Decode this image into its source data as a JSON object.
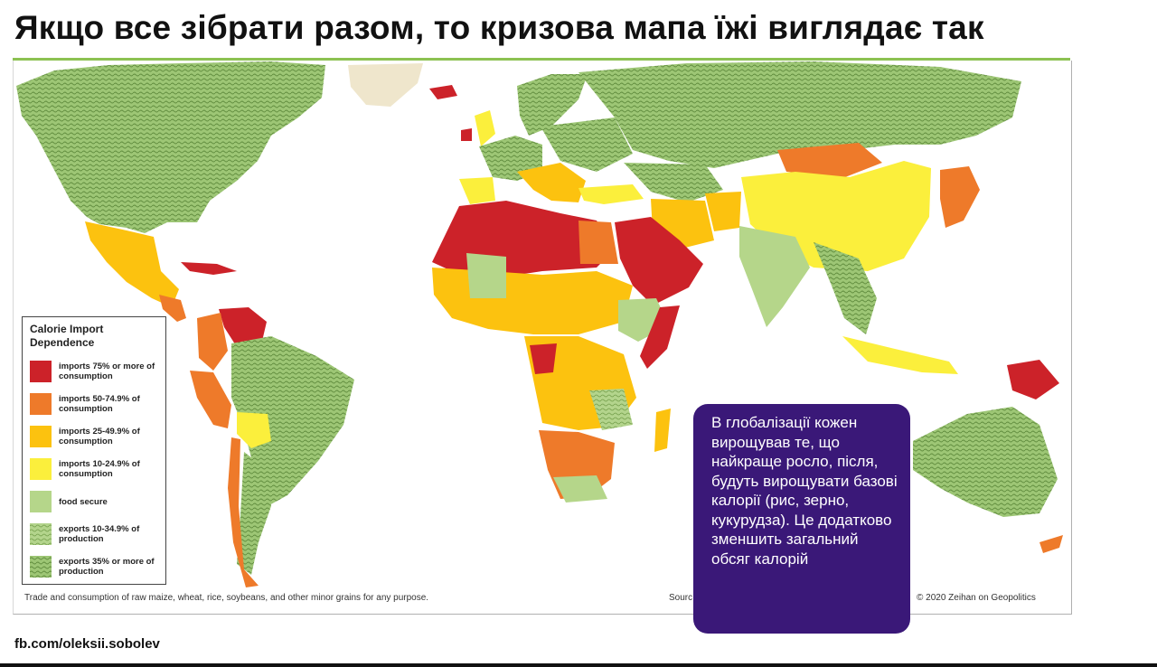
{
  "slide": {
    "title": "Якщо все зібрати разом, то кризова мапа їжі виглядає так",
    "handle": "fb.com/oleksii.sobolev"
  },
  "map": {
    "footnote": "Trade and consumption of raw maize, wheat, rice, soybeans, and other minor grains for any purpose.",
    "source_fragment": "Sourc",
    "copyright": "© 2020 Zeihan on Geopolitics",
    "legend": {
      "title": "Calorie Import Dependence",
      "items": [
        {
          "label": "imports 75% or more of consumption",
          "color": "#cc2229"
        },
        {
          "label": "imports 50-74.9% of consumption",
          "color": "#ee7a2a"
        },
        {
          "label": "imports 25-49.9% of consumption",
          "color": "#fcc20f"
        },
        {
          "label": "imports 10-24.9% of consumption",
          "color": "#fbef3c"
        },
        {
          "label": "food secure",
          "color": "#b5d68a"
        },
        {
          "label": "exports 10-34.9% of production",
          "color": "#a3c97a"
        },
        {
          "label": "exports 35% or more of production",
          "color": "#9cc573"
        }
      ]
    }
  },
  "callout": {
    "text": "В глобалізації кожен вирощував те, що найкраще росло, після, будуть вирощувати базові калорії (рис, зерно, кукурудза). Це додатково зменшить загальний обсяг калорій",
    "color": "#3a1878"
  }
}
